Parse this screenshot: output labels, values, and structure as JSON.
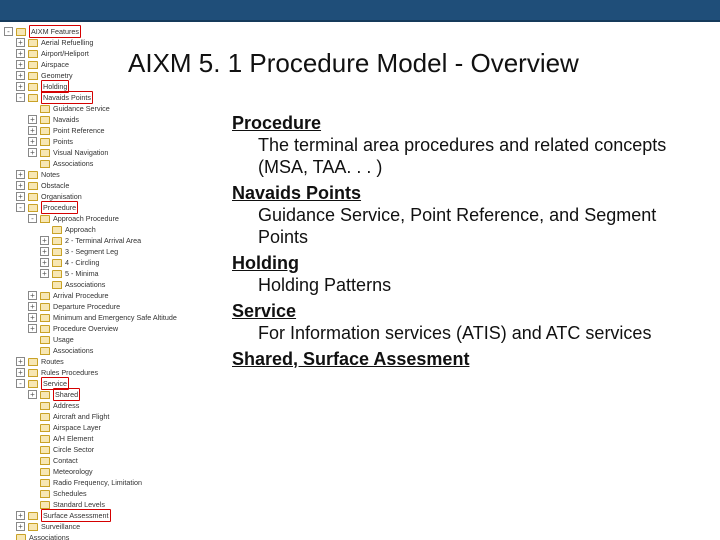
{
  "title": "AIXM 5. 1 Procedure Model - Overview",
  "tree": [
    {
      "level": 0,
      "expand": "-",
      "label": "AIXM Features",
      "highlight": true
    },
    {
      "level": 1,
      "expand": "+",
      "label": "Aerial Refuelling"
    },
    {
      "level": 1,
      "expand": "+",
      "label": "Airport/Heliport"
    },
    {
      "level": 1,
      "expand": "+",
      "label": "Airspace"
    },
    {
      "level": 1,
      "expand": "+",
      "label": "Geometry"
    },
    {
      "level": 1,
      "expand": "+",
      "label": "Holding",
      "highlight": true
    },
    {
      "level": 1,
      "expand": "-",
      "label": "Navaids Points",
      "highlight": true
    },
    {
      "level": 2,
      "expand": "",
      "label": "Guidance Service"
    },
    {
      "level": 2,
      "expand": "+",
      "label": "Navaids"
    },
    {
      "level": 2,
      "expand": "+",
      "label": "Point Reference"
    },
    {
      "level": 2,
      "expand": "+",
      "label": "Points"
    },
    {
      "level": 2,
      "expand": "+",
      "label": "Visual Navigation"
    },
    {
      "level": 2,
      "expand": "",
      "label": "Associations"
    },
    {
      "level": 1,
      "expand": "+",
      "label": "Notes"
    },
    {
      "level": 1,
      "expand": "+",
      "label": "Obstacle"
    },
    {
      "level": 1,
      "expand": "+",
      "label": "Organisation"
    },
    {
      "level": 1,
      "expand": "-",
      "label": "Procedure",
      "highlight": true
    },
    {
      "level": 2,
      "expand": "-",
      "label": "Approach Procedure"
    },
    {
      "level": 3,
      "expand": "",
      "label": "Approach"
    },
    {
      "level": 3,
      "expand": "+",
      "label": "2 - Terminal Arrival Area"
    },
    {
      "level": 3,
      "expand": "+",
      "label": "3 - Segment Leg"
    },
    {
      "level": 3,
      "expand": "+",
      "label": "4 - Circling"
    },
    {
      "level": 3,
      "expand": "+",
      "label": "5 - Minima"
    },
    {
      "level": 3,
      "expand": "",
      "label": "Associations"
    },
    {
      "level": 2,
      "expand": "+",
      "label": "Arrival Procedure"
    },
    {
      "level": 2,
      "expand": "+",
      "label": "Departure Procedure"
    },
    {
      "level": 2,
      "expand": "+",
      "label": "Minimum and Emergency Safe Altitude"
    },
    {
      "level": 2,
      "expand": "+",
      "label": "Procedure Overview"
    },
    {
      "level": 2,
      "expand": "",
      "label": "Usage"
    },
    {
      "level": 2,
      "expand": "",
      "label": "Associations"
    },
    {
      "level": 1,
      "expand": "+",
      "label": "Routes"
    },
    {
      "level": 1,
      "expand": "+",
      "label": "Rules Procedures"
    },
    {
      "level": 1,
      "expand": "-",
      "label": "Service",
      "highlight": true
    },
    {
      "level": 2,
      "expand": "+",
      "label": "Shared",
      "highlight": true
    },
    {
      "level": 2,
      "expand": "",
      "label": "Address"
    },
    {
      "level": 2,
      "expand": "",
      "label": "Aircraft and Flight"
    },
    {
      "level": 2,
      "expand": "",
      "label": "Airspace Layer"
    },
    {
      "level": 2,
      "expand": "",
      "label": "A/H Element"
    },
    {
      "level": 2,
      "expand": "",
      "label": "Circle Sector"
    },
    {
      "level": 2,
      "expand": "",
      "label": "Contact"
    },
    {
      "level": 2,
      "expand": "",
      "label": "Meteorology"
    },
    {
      "level": 2,
      "expand": "",
      "label": "Radio Frequency, Limitation"
    },
    {
      "level": 2,
      "expand": "",
      "label": "Schedules"
    },
    {
      "level": 2,
      "expand": "",
      "label": "Standard Levels"
    },
    {
      "level": 1,
      "expand": "+",
      "label": "Surface Assessment",
      "highlight": true
    },
    {
      "level": 1,
      "expand": "+",
      "label": "Surveillance"
    },
    {
      "level": 0,
      "expand": "",
      "label": "Associations"
    }
  ],
  "sections": [
    {
      "heading": "Procedure ",
      "desc": "The terminal area procedures and related concepts (MSA, TAA. . . )"
    },
    {
      "heading": "Navaids Points",
      "desc": "Guidance Service, Point Reference, and Segment Points"
    },
    {
      "heading": "Holding",
      "desc": "Holding Patterns"
    },
    {
      "heading": "Service",
      "desc": "For Information services (ATIS) and ATC services"
    },
    {
      "heading": "Shared, Surface Assesment",
      "desc": ""
    }
  ]
}
